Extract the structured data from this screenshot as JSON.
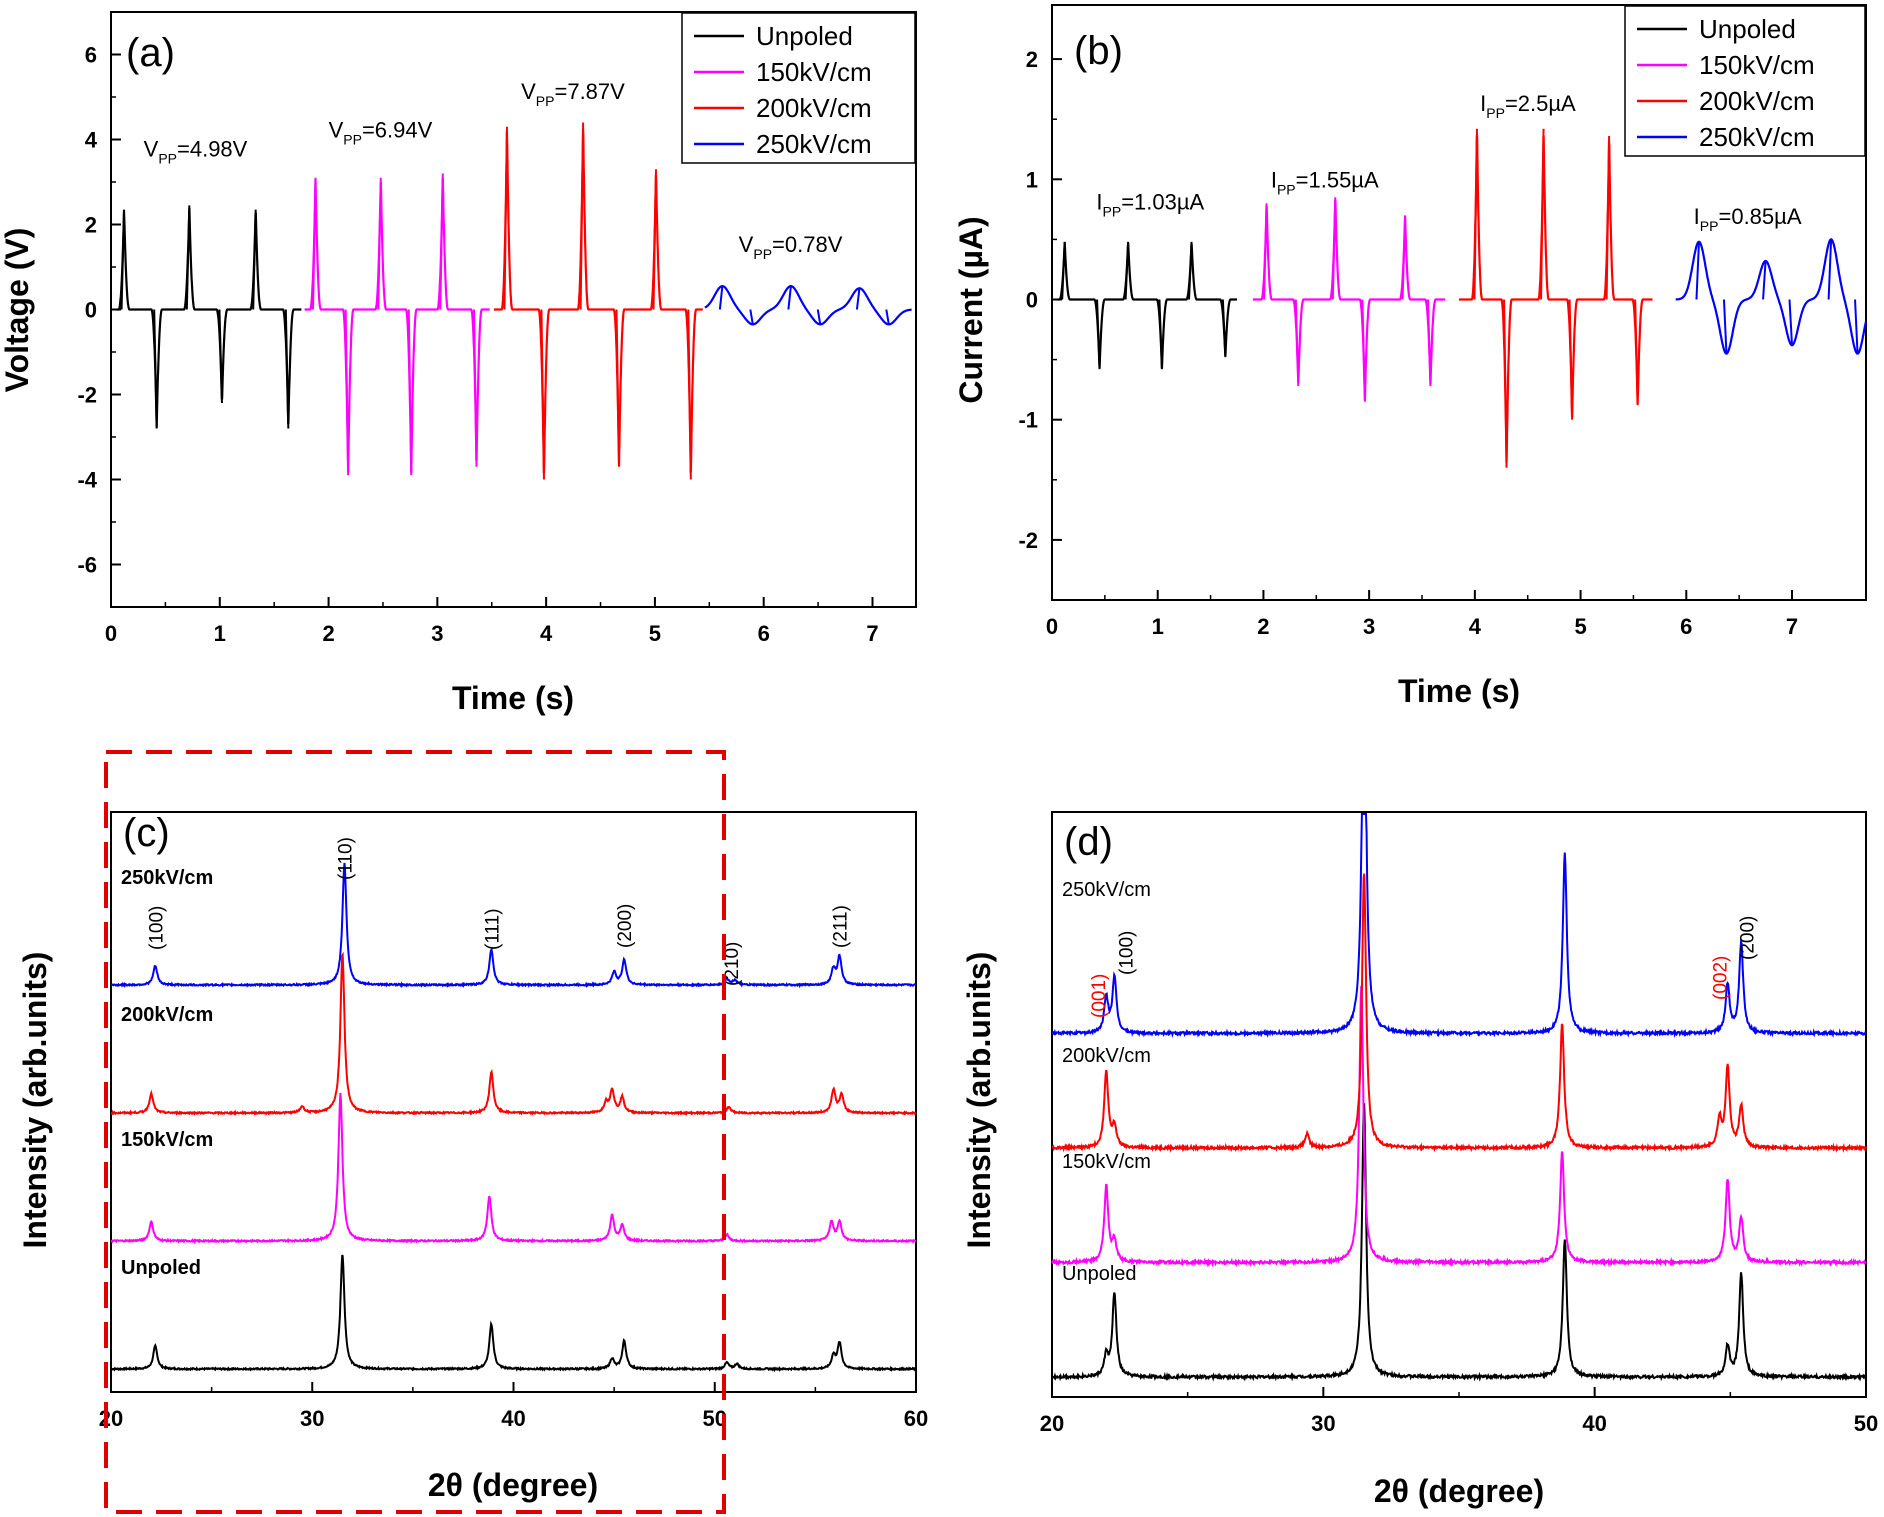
{
  "colors": {
    "unpoled": "#000000",
    "kv150": "#ff00ff",
    "kv200": "#ff0000",
    "kv250": "#0000ff",
    "highlight": "#e00000"
  },
  "chart_data": [
    {
      "panel": "(a)",
      "type": "line",
      "xlabel": "Time (s)",
      "ylabel": "Voltage (V)",
      "xlim": [
        0,
        7.4
      ],
      "ylim": [
        -7,
        7
      ],
      "xticks": [
        0,
        1,
        2,
        3,
        4,
        5,
        6,
        7
      ],
      "yticks": [
        -6,
        -4,
        -2,
        0,
        2,
        4,
        6
      ],
      "legend_position": "top-right",
      "series": [
        {
          "name": "Unpoled",
          "color_key": "unpoled",
          "shape": "spike",
          "width": 0.05,
          "pos_peaks": [
            [
              0.12,
              2.35
            ],
            [
              0.72,
              2.45
            ],
            [
              1.33,
              2.35
            ]
          ],
          "neg_peaks": [
            [
              0.42,
              -2.8
            ],
            [
              1.02,
              -2.2
            ],
            [
              1.63,
              -2.8
            ]
          ],
          "x_range": [
            0.05,
            1.75
          ]
        },
        {
          "name": "150kV/cm",
          "color_key": "kv150",
          "shape": "spike",
          "width": 0.05,
          "pos_peaks": [
            [
              1.88,
              3.1
            ],
            [
              2.48,
              3.1
            ],
            [
              3.05,
              3.2
            ]
          ],
          "neg_peaks": [
            [
              2.18,
              -3.9
            ],
            [
              2.76,
              -3.9
            ],
            [
              3.36,
              -3.7
            ]
          ],
          "x_range": [
            1.78,
            3.48
          ]
        },
        {
          "name": "200kV/cm",
          "color_key": "kv200",
          "shape": "spike",
          "width": 0.05,
          "pos_peaks": [
            [
              3.64,
              4.3
            ],
            [
              4.34,
              4.4
            ],
            [
              5.01,
              3.3
            ]
          ],
          "neg_peaks": [
            [
              3.98,
              -4.0
            ],
            [
              4.67,
              -3.7
            ],
            [
              5.33,
              -4.0
            ]
          ],
          "x_range": [
            3.52,
            5.44
          ]
        },
        {
          "name": "250kV/cm",
          "color_key": "kv250",
          "shape": "smooth",
          "width": 0.12,
          "pos_peaks": [
            [
              5.62,
              0.55
            ],
            [
              6.25,
              0.55
            ],
            [
              6.88,
              0.5
            ]
          ],
          "neg_peaks": [
            [
              5.9,
              -0.35
            ],
            [
              6.52,
              -0.35
            ],
            [
              7.15,
              -0.35
            ]
          ],
          "x_range": [
            5.46,
            7.36
          ]
        }
      ],
      "annotations": [
        {
          "main": "V",
          "sub": "PP",
          "rest": "=4.98V",
          "x": 0.3,
          "y": 3.6
        },
        {
          "main": "V",
          "sub": "PP",
          "rest": "=6.94V",
          "x": 2.0,
          "y": 4.05
        },
        {
          "main": "V",
          "sub": "PP",
          "rest": "=7.87V",
          "x": 3.77,
          "y": 4.95
        },
        {
          "main": "V",
          "sub": "PP",
          "rest": "=0.78V",
          "x": 5.77,
          "y": 1.35
        }
      ]
    },
    {
      "panel": "(b)",
      "type": "line",
      "xlabel": "Time (s)",
      "ylabel": "Current (µA)",
      "xlim": [
        0,
        7.7
      ],
      "ylim": [
        -2.5,
        2.45
      ],
      "xticks": [
        0,
        1,
        2,
        3,
        4,
        5,
        6,
        7
      ],
      "yticks": [
        -2,
        -1,
        0,
        1,
        2
      ],
      "legend_position": "top-right",
      "series": [
        {
          "name": "Unpoled",
          "color_key": "unpoled",
          "shape": "spike",
          "width": 0.05,
          "pos_peaks": [
            [
              0.12,
              0.48
            ],
            [
              0.72,
              0.48
            ],
            [
              1.32,
              0.48
            ]
          ],
          "neg_peaks": [
            [
              0.45,
              -0.58
            ],
            [
              1.04,
              -0.58
            ],
            [
              1.64,
              -0.48
            ]
          ],
          "x_range": [
            0.05,
            1.75
          ]
        },
        {
          "name": "150kV/cm",
          "color_key": "kv150",
          "shape": "spike",
          "width": 0.05,
          "pos_peaks": [
            [
              2.03,
              0.8
            ],
            [
              2.68,
              0.85
            ],
            [
              3.34,
              0.7
            ]
          ],
          "neg_peaks": [
            [
              2.33,
              -0.72
            ],
            [
              2.96,
              -0.85
            ],
            [
              3.58,
              -0.72
            ]
          ],
          "x_range": [
            1.9,
            3.72
          ]
        },
        {
          "name": "200kV/cm",
          "color_key": "kv200",
          "shape": "spike",
          "width": 0.05,
          "pos_peaks": [
            [
              4.02,
              1.42
            ],
            [
              4.65,
              1.42
            ],
            [
              5.27,
              1.36
            ]
          ],
          "neg_peaks": [
            [
              4.3,
              -1.4
            ],
            [
              4.92,
              -1.0
            ],
            [
              5.54,
              -0.88
            ]
          ],
          "x_range": [
            3.85,
            5.68
          ]
        },
        {
          "name": "250kV/cm",
          "color_key": "kv250",
          "shape": "smooth",
          "width": 0.1,
          "pos_peaks": [
            [
              6.12,
              0.48
            ],
            [
              6.75,
              0.32
            ],
            [
              7.37,
              0.5
            ]
          ],
          "neg_peaks": [
            [
              6.38,
              -0.45
            ],
            [
              7.0,
              -0.38
            ],
            [
              7.62,
              -0.45
            ]
          ],
          "x_range": [
            5.9,
            7.7
          ]
        }
      ],
      "annotations": [
        {
          "main": "I",
          "sub": "PP",
          "rest": "=1.03µA",
          "x": 0.42,
          "y": 0.75
        },
        {
          "main": "I",
          "sub": "PP",
          "rest": "=1.55µA",
          "x": 2.07,
          "y": 0.93
        },
        {
          "main": "I",
          "sub": "PP",
          "rest": "=2.5µA",
          "x": 4.05,
          "y": 1.57
        },
        {
          "main": "I",
          "sub": "PP",
          "rest": "=0.85µA",
          "x": 6.07,
          "y": 0.63
        }
      ]
    },
    {
      "panel": "(c)",
      "type": "line",
      "xlabel": "2θ (degree)",
      "ylabel": "Intensity (arb.units)",
      "xlim": [
        20,
        60
      ],
      "xticks": [
        20,
        30,
        40,
        50,
        60
      ],
      "series": [
        {
          "name": "Unpoled",
          "color_key": "unpoled",
          "baseline": 0.0,
          "peaks": [
            [
              22.2,
              0.18
            ],
            [
              31.5,
              0.9
            ],
            [
              38.9,
              0.35
            ],
            [
              44.9,
              0.08
            ],
            [
              45.5,
              0.22
            ],
            [
              50.6,
              0.05
            ],
            [
              51.1,
              0.04
            ],
            [
              55.9,
              0.1
            ],
            [
              56.2,
              0.2
            ]
          ]
        },
        {
          "name": "150kV/cm",
          "color_key": "kv150",
          "baseline": 1.0,
          "peaks": [
            [
              22.0,
              0.15
            ],
            [
              31.4,
              1.15
            ],
            [
              38.8,
              0.35
            ],
            [
              44.9,
              0.2
            ],
            [
              45.4,
              0.12
            ],
            [
              50.6,
              0.05
            ],
            [
              55.8,
              0.15
            ],
            [
              56.2,
              0.15
            ]
          ]
        },
        {
          "name": "200kV/cm",
          "color_key": "kv200",
          "baseline": 2.0,
          "peaks": [
            [
              22.0,
              0.15
            ],
            [
              29.5,
              0.05
            ],
            [
              31.5,
              1.25
            ],
            [
              38.9,
              0.32
            ],
            [
              44.6,
              0.08
            ],
            [
              44.9,
              0.18
            ],
            [
              45.4,
              0.12
            ],
            [
              50.7,
              0.05
            ],
            [
              55.9,
              0.18
            ],
            [
              56.3,
              0.14
            ]
          ]
        },
        {
          "name": "250kV/cm",
          "color_key": "kv250",
          "baseline": 3.0,
          "peaks": [
            [
              22.2,
              0.15
            ],
            [
              31.6,
              0.95
            ],
            [
              38.9,
              0.28
            ],
            [
              45.0,
              0.1
            ],
            [
              45.5,
              0.2
            ],
            [
              50.6,
              0.05
            ],
            [
              51.0,
              0.04
            ],
            [
              55.9,
              0.12
            ],
            [
              56.2,
              0.22
            ]
          ]
        }
      ],
      "series_labels": [
        "250kV/cm",
        "200kV/cm",
        "150kV/cm",
        "Unpoled"
      ],
      "peak_labels": [
        {
          "text": "(100)",
          "x": 22.2,
          "color_key": "unpoled"
        },
        {
          "text": "(110)",
          "x": 31.6,
          "color_key": "unpoled"
        },
        {
          "text": "(111)",
          "x": 38.9,
          "color_key": "unpoled"
        },
        {
          "text": "(200)",
          "x": 45.5,
          "color_key": "unpoled"
        },
        {
          "text": "(210)",
          "x": 50.8,
          "color_key": "unpoled"
        },
        {
          "text": "(211)",
          "x": 56.2,
          "color_key": "unpoled"
        }
      ]
    },
    {
      "panel": "(d)",
      "type": "line",
      "xlabel": "2θ (degree)",
      "ylabel": "Intensity (arb.units)",
      "xlim": [
        20,
        50
      ],
      "xticks": [
        20,
        30,
        40,
        50
      ],
      "series": [
        {
          "name": "Unpoled",
          "color_key": "unpoled",
          "baseline": 0.0,
          "peaks": [
            [
              22.0,
              0.15
            ],
            [
              22.3,
              0.6
            ],
            [
              31.5,
              2.0
            ],
            [
              38.9,
              1.0
            ],
            [
              44.9,
              0.22
            ],
            [
              45.4,
              0.75
            ]
          ]
        },
        {
          "name": "150kV/cm",
          "color_key": "kv150",
          "baseline": 0.83,
          "peaks": [
            [
              22.0,
              0.55
            ],
            [
              22.3,
              0.15
            ],
            [
              31.4,
              2.0
            ],
            [
              38.8,
              0.8
            ],
            [
              44.9,
              0.6
            ],
            [
              45.4,
              0.32
            ]
          ]
        },
        {
          "name": "200kV/cm",
          "color_key": "kv200",
          "baseline": 1.66,
          "peaks": [
            [
              22.0,
              0.55
            ],
            [
              22.3,
              0.15
            ],
            [
              29.4,
              0.1
            ],
            [
              31.5,
              2.0
            ],
            [
              38.8,
              0.9
            ],
            [
              44.6,
              0.2
            ],
            [
              44.9,
              0.58
            ],
            [
              45.4,
              0.3
            ]
          ]
        },
        {
          "name": "250kV/cm",
          "color_key": "kv250",
          "baseline": 2.49,
          "peaks": [
            [
              22.0,
              0.25
            ],
            [
              22.3,
              0.4
            ],
            [
              31.5,
              3.0
            ],
            [
              38.9,
              1.3
            ],
            [
              44.9,
              0.35
            ],
            [
              45.4,
              0.65
            ]
          ]
        }
      ],
      "series_labels": [
        "250kV/cm",
        "200kV/cm",
        "150kV/cm",
        "Unpoled"
      ],
      "peak_labels": [
        {
          "text": "(001)",
          "x": 21.7,
          "color_key": "kv200"
        },
        {
          "text": "(100)",
          "x": 22.7,
          "color_key": "unpoled"
        },
        {
          "text": "(002)",
          "x": 44.6,
          "color_key": "kv200"
        },
        {
          "text": "(200)",
          "x": 45.6,
          "color_key": "unpoled"
        }
      ]
    }
  ]
}
